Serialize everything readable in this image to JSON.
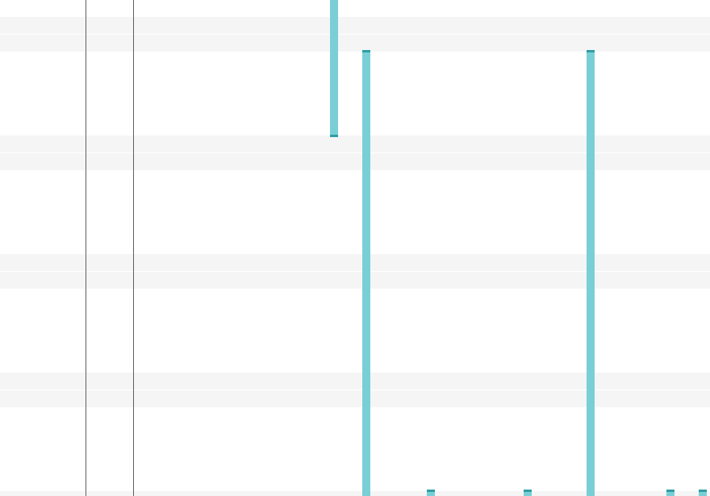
{
  "timeline": {
    "row_bands": 8,
    "column_dividers": 2,
    "bar_count": 7
  },
  "colors": {
    "bar_fill": "#79cfd6",
    "bar_cap": "#2f9ea6",
    "band": "#f5f5f5",
    "divider": "#5f5f5f",
    "background": "#ffffff"
  }
}
